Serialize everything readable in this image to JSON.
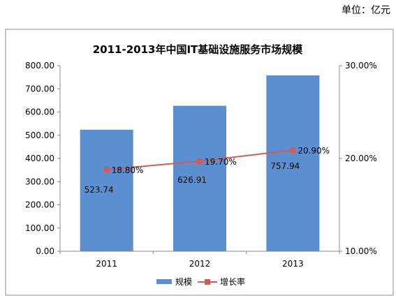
{
  "unit_note": "单位：亿元",
  "chart_data": {
    "type": "bar",
    "title": "2011-2013年中国IT基础设施服务市场规模",
    "categories": [
      "2011",
      "2012",
      "2013"
    ],
    "series": [
      {
        "name": "规模",
        "type": "bar",
        "axis": "left",
        "values": [
          523.74,
          626.91,
          757.94
        ],
        "labels": [
          "523.74",
          "626.91",
          "757.94"
        ]
      },
      {
        "name": "增长率",
        "type": "line",
        "axis": "right",
        "values": [
          18.8,
          19.7,
          20.9
        ],
        "labels": [
          "18.80%",
          "19.70%",
          "20.90%"
        ]
      }
    ],
    "ylim": [
      0,
      800
    ],
    "y_ticks": [
      "0.00",
      "100.00",
      "200.00",
      "300.00",
      "400.00",
      "500.00",
      "600.00",
      "700.00",
      "800.00"
    ],
    "y2lim": [
      10,
      30
    ],
    "y2_ticks": [
      "10.00%",
      "20.00%",
      "30.00%"
    ],
    "grid": false,
    "legend_position": "bottom",
    "colors": {
      "bar": "#5b8fd0",
      "line": "#d45b53"
    }
  }
}
